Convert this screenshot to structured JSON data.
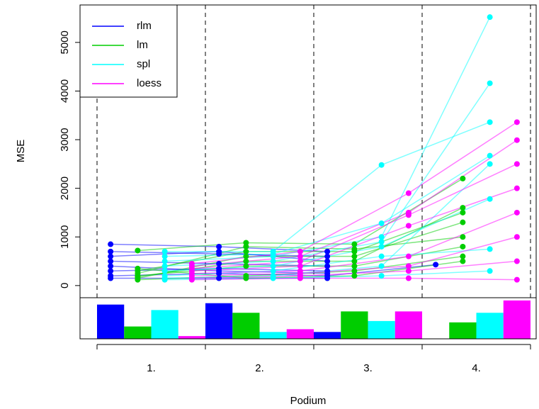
{
  "chart_data": {
    "type": "line",
    "x_label": "Podium",
    "y_label": "MSE",
    "categories": [
      "1.",
      "2.",
      "3.",
      "4."
    ],
    "ylim": [
      -250,
      5770
    ],
    "yticks": [
      0,
      1000,
      2000,
      3000,
      4000,
      5000
    ],
    "bar_ylim": [
      0,
      30
    ],
    "legend_position": "topleft",
    "series": [
      {
        "name": "rlm",
        "color": "#0000ff",
        "values": [
          25,
          26,
          5,
          0
        ],
        "lines": [
          [
            850,
            800,
            700,
            null
          ],
          [
            700,
            650,
            600,
            null
          ],
          [
            500,
            450,
            400,
            null
          ],
          [
            300,
            350,
            300,
            null
          ],
          [
            200,
            250,
            200,
            430
          ],
          [
            150,
            150,
            150,
            null
          ],
          [
            600,
            700,
            500,
            null
          ],
          [
            400,
            300,
            250,
            null
          ]
        ]
      },
      {
        "name": "lm",
        "color": "#00cd00",
        "values": [
          9,
          19,
          20,
          12
        ],
        "lines": [
          [
            720,
            880,
            850,
            2200
          ],
          [
            300,
            700,
            700,
            1500
          ],
          [
            150,
            600,
            600,
            1300
          ],
          [
            200,
            400,
            400,
            800
          ],
          [
            120,
            200,
            300,
            600
          ],
          [
            350,
            150,
            200,
            500
          ],
          [
            250,
            800,
            750,
            1000
          ],
          [
            180,
            500,
            500,
            1600
          ]
        ]
      },
      {
        "name": "spl",
        "color": "#00ffff",
        "values": [
          21,
          5,
          13,
          19
        ],
        "lines": [
          [
            700,
            700,
            2480,
            3360
          ],
          [
            600,
            650,
            1280,
            2670
          ],
          [
            500,
            600,
            1000,
            5520
          ],
          [
            400,
            500,
            900,
            4160
          ],
          [
            300,
            400,
            800,
            1780
          ],
          [
            200,
            300,
            600,
            750
          ],
          [
            150,
            200,
            400,
            2500
          ],
          [
            120,
            150,
            200,
            300
          ]
        ]
      },
      {
        "name": "loess",
        "color": "#ff00ff",
        "values": [
          2,
          7,
          20,
          28
        ],
        "lines": [
          [
            450,
            700,
            1900,
            3360
          ],
          [
            400,
            600,
            1500,
            2990
          ],
          [
            350,
            500,
            1450,
            2500
          ],
          [
            300,
            400,
            1230,
            2000
          ],
          [
            250,
            300,
            600,
            1500
          ],
          [
            200,
            250,
            400,
            1000
          ],
          [
            150,
            200,
            300,
            500
          ],
          [
            120,
            150,
            150,
            120
          ]
        ]
      }
    ]
  }
}
